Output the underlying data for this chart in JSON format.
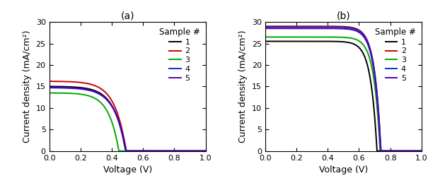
{
  "panel_a": {
    "label": "(a)",
    "curves": [
      {
        "sample": "1",
        "color": "#000000",
        "Jsc": 15.0,
        "Voc": 0.488,
        "n": 2.8
      },
      {
        "sample": "2",
        "color": "#cc0000",
        "Jsc": 16.2,
        "Voc": 0.492,
        "n": 2.8
      },
      {
        "sample": "3",
        "color": "#00aa00",
        "Jsc": 13.5,
        "Voc": 0.445,
        "n": 2.5
      },
      {
        "sample": "4",
        "color": "#0033cc",
        "Jsc": 14.7,
        "Voc": 0.492,
        "n": 2.9
      },
      {
        "sample": "5",
        "color": "#5500bb",
        "Jsc": 14.8,
        "Voc": 0.492,
        "n": 2.9
      }
    ],
    "xlim": [
      0,
      1.0
    ],
    "ylim": [
      0,
      30
    ],
    "xlabel": "Voltage (V)",
    "ylabel": "Current density (mA/cm²)",
    "yticks": [
      0,
      5,
      10,
      15,
      20,
      25,
      30
    ],
    "xticks": [
      0.0,
      0.2,
      0.4,
      0.6,
      0.8,
      1.0
    ]
  },
  "panel_b": {
    "label": "(b)",
    "curves": [
      {
        "sample": "1",
        "color": "#000000",
        "Jsc": 25.5,
        "Voc": 0.715,
        "n": 1.55
      },
      {
        "sample": "2",
        "color": "#cc0000",
        "Jsc": 29.0,
        "Voc": 0.74,
        "n": 1.55
      },
      {
        "sample": "3",
        "color": "#00aa00",
        "Jsc": 26.5,
        "Voc": 0.735,
        "n": 1.55
      },
      {
        "sample": "4",
        "color": "#0033cc",
        "Jsc": 28.8,
        "Voc": 0.74,
        "n": 1.55
      },
      {
        "sample": "5",
        "color": "#5500bb",
        "Jsc": 28.5,
        "Voc": 0.738,
        "n": 1.55
      }
    ],
    "xlim": [
      0,
      1.0
    ],
    "ylim": [
      0,
      30
    ],
    "xlabel": "Voltage (V)",
    "ylabel": "Current density (mA/cm²)",
    "yticks": [
      0,
      5,
      10,
      15,
      20,
      25,
      30
    ],
    "xticks": [
      0.0,
      0.2,
      0.4,
      0.6,
      0.8,
      1.0
    ]
  },
  "legend_title": "Sample #",
  "legend_labels": [
    "1",
    "2",
    "3",
    "4",
    "5"
  ],
  "line_width": 1.4,
  "font_size": 9,
  "tick_font_size": 8,
  "label_font_size": 10
}
